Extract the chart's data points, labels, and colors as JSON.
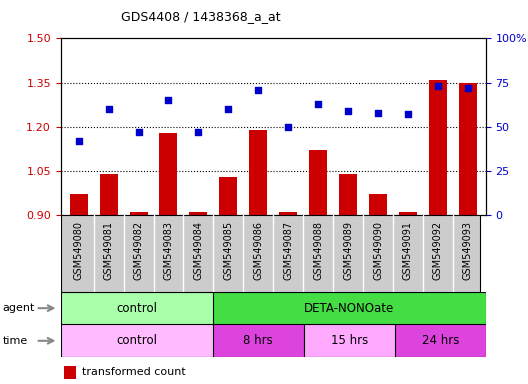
{
  "title": "GDS4408 / 1438368_a_at",
  "samples": [
    "GSM549080",
    "GSM549081",
    "GSM549082",
    "GSM549083",
    "GSM549084",
    "GSM549085",
    "GSM549086",
    "GSM549087",
    "GSM549088",
    "GSM549089",
    "GSM549090",
    "GSM549091",
    "GSM549092",
    "GSM549093"
  ],
  "transformed_count": [
    0.97,
    1.04,
    0.91,
    1.18,
    0.91,
    1.03,
    1.19,
    0.91,
    1.12,
    1.04,
    0.97,
    0.91,
    1.36,
    1.35
  ],
  "percentile_rank": [
    42,
    60,
    47,
    65,
    47,
    60,
    71,
    50,
    63,
    59,
    58,
    57,
    73,
    72
  ],
  "ylim_left": [
    0.9,
    1.5
  ],
  "ylim_right": [
    0,
    100
  ],
  "yticks_left": [
    0.9,
    1.05,
    1.2,
    1.35,
    1.5
  ],
  "yticks_right": [
    0,
    25,
    50,
    75,
    100
  ],
  "hlines": [
    1.05,
    1.2,
    1.35
  ],
  "bar_color": "#cc0000",
  "dot_color": "#0000cc",
  "agent_control_color": "#aaffaa",
  "agent_deta_color": "#44dd44",
  "time_control_color": "#ffbbff",
  "time_8hrs_color": "#dd44dd",
  "time_15hrs_color": "#ffaaff",
  "time_24hrs_color": "#dd44dd",
  "agent_control_label": "control",
  "agent_deta_label": "DETA-NONOate",
  "time_control_label": "control",
  "time_8hrs_label": "8 hrs",
  "time_15hrs_label": "15 hrs",
  "time_24hrs_label": "24 hrs",
  "control_count": 5,
  "deta_8hrs_count": 3,
  "deta_15hrs_count": 3,
  "deta_24hrs_count": 3,
  "tick_label_fontsize": 7,
  "axis_label_color_left": "#cc0000",
  "axis_label_color_right": "#0000cc",
  "background_color": "#ffffff",
  "plot_bg_color": "#ffffff",
  "xtick_bg_color": "#cccccc",
  "arrow_color": "#888888"
}
